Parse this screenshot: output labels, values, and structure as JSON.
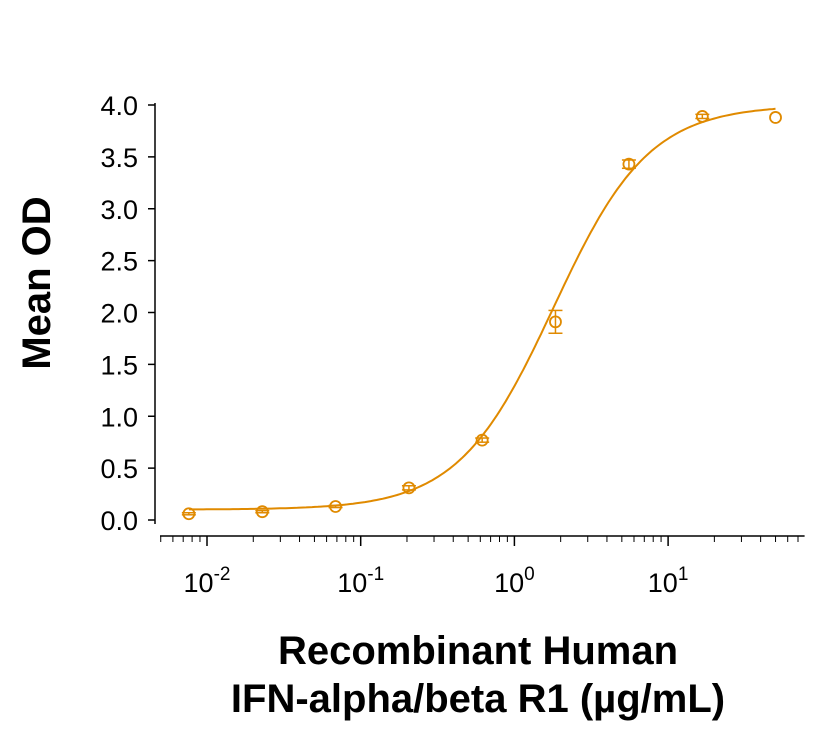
{
  "chart_data": {
    "type": "scatter",
    "xlabel_lines": [
      "Recombinant Human",
      "IFN-alpha/beta R1 (µg/mL)"
    ],
    "ylabel": "Mean OD",
    "x_scale": "log",
    "xlim": [
      0.005,
      75
    ],
    "ylim": [
      0,
      4.0
    ],
    "y_ticks": [
      "0.0",
      "0.5",
      "1.0",
      "1.5",
      "2.0",
      "2.5",
      "3.0",
      "3.5",
      "4.0"
    ],
    "x_ticks": [
      {
        "base": "10",
        "exp": "-2",
        "value": 0.01
      },
      {
        "base": "10",
        "exp": "-1",
        "value": 0.1
      },
      {
        "base": "10",
        "exp": "0",
        "value": 1
      },
      {
        "base": "10",
        "exp": "1",
        "value": 10
      }
    ],
    "grid": false,
    "color": "#E08A00",
    "points": [
      {
        "x": 0.00762,
        "y": 0.06,
        "err": 0.01
      },
      {
        "x": 0.0229,
        "y": 0.08,
        "err": 0.01
      },
      {
        "x": 0.0686,
        "y": 0.13,
        "err": 0.01
      },
      {
        "x": 0.206,
        "y": 0.31,
        "err": 0.02
      },
      {
        "x": 0.617,
        "y": 0.77,
        "err": 0.02
      },
      {
        "x": 1.85,
        "y": 1.91,
        "err": 0.11
      },
      {
        "x": 5.56,
        "y": 3.43,
        "err": 0.04
      },
      {
        "x": 16.7,
        "y": 3.89,
        "err": 0.02
      },
      {
        "x": 50,
        "y": 3.88,
        "err": 0.0
      }
    ],
    "fit": {
      "model": "4PL",
      "bottom": 0.1,
      "top": 4.0,
      "ec50": 1.8,
      "hill": 1.4
    }
  }
}
